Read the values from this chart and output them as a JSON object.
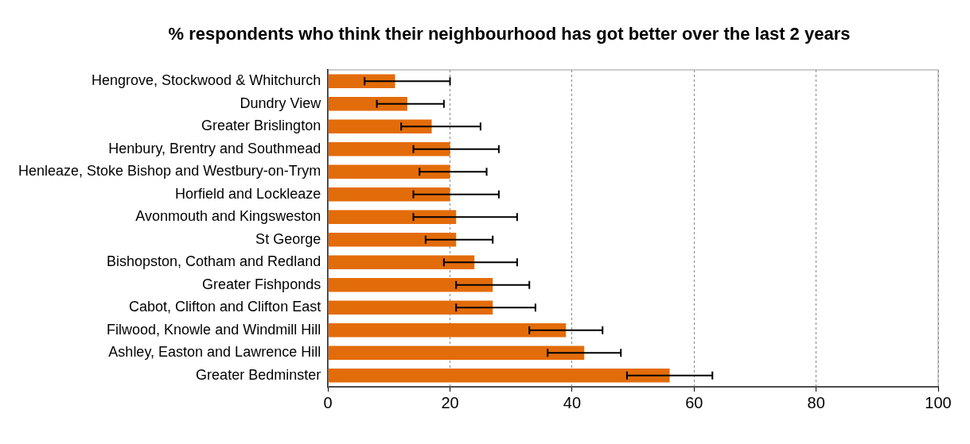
{
  "chart_data": {
    "type": "bar",
    "orientation": "horizontal",
    "title": "% respondents who think their neighbourhood has got better over the last 2 years",
    "categories": [
      "Hengrove, Stockwood & Whitchurch",
      "Dundry View",
      "Greater Brislington",
      "Henbury, Brentry and Southmead",
      "Henleaze, Stoke Bishop and Westbury-on-Trym",
      "Horfield and Lockleaze",
      "Avonmouth and Kingsweston",
      "St George",
      "Bishopston, Cotham and Redland",
      "Greater Fishponds",
      "Cabot, Clifton and Clifton East",
      "Filwood, Knowle and Windmill Hill",
      "Ashley, Easton and Lawrence Hill",
      "Greater Bedminster"
    ],
    "values": [
      11,
      13,
      17,
      20,
      20,
      20,
      21,
      21,
      24,
      27,
      27,
      39,
      42,
      56
    ],
    "errors": [
      [
        6,
        20
      ],
      [
        8,
        19
      ],
      [
        12,
        25
      ],
      [
        14,
        28
      ],
      [
        15,
        26
      ],
      [
        14,
        28
      ],
      [
        14,
        31
      ],
      [
        16,
        27
      ],
      [
        19,
        31
      ],
      [
        21,
        33
      ],
      [
        21,
        34
      ],
      [
        33,
        45
      ],
      [
        36,
        48
      ],
      [
        49,
        63
      ]
    ],
    "color": "#e36c0a",
    "xlim": [
      0,
      100
    ],
    "xticks": [
      0,
      20,
      40,
      60,
      80,
      100
    ],
    "grid": "x",
    "legend": false
  }
}
